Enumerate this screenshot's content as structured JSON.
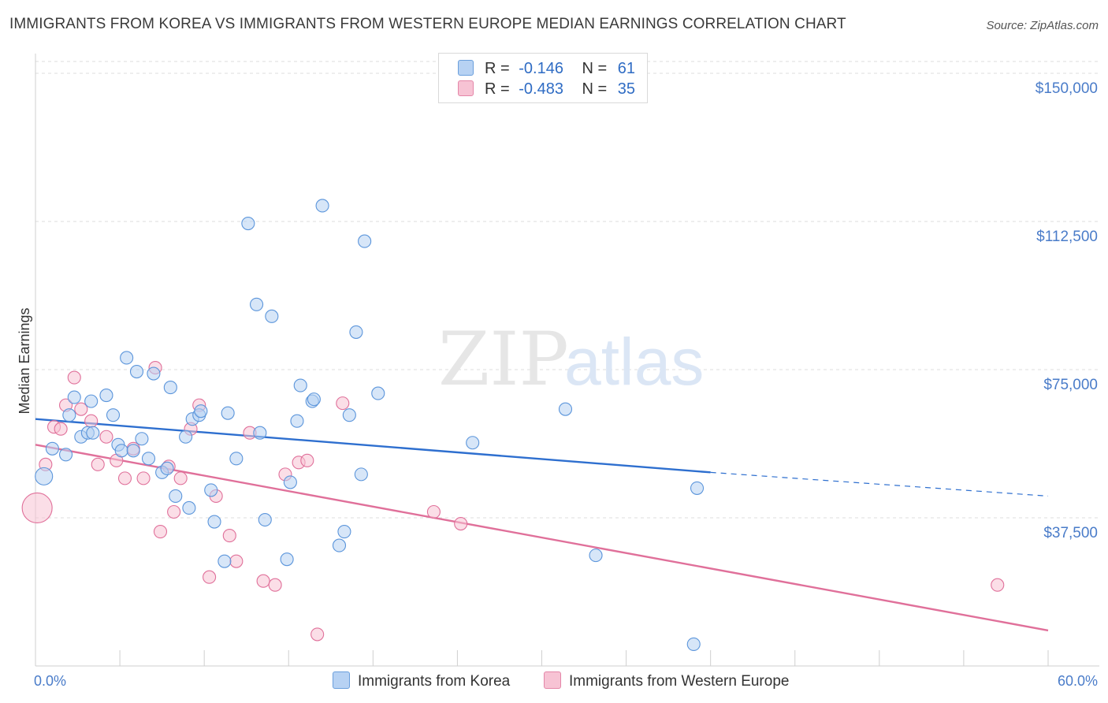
{
  "title": "IMMIGRANTS FROM KOREA VS IMMIGRANTS FROM WESTERN EUROPE MEDIAN EARNINGS CORRELATION CHART",
  "source": "Source: ZipAtlas.com",
  "watermark": {
    "zip": "ZIP",
    "atlas": "atlas"
  },
  "legend": {
    "r_label": "R =",
    "n_label": "N =",
    "rows": [
      {
        "r": "-0.146",
        "n": "61",
        "color": "#a9c9f0",
        "edge": "#6a9fdc"
      },
      {
        "r": "-0.483",
        "n": "35",
        "color": "#f6bcd0",
        "edge": "#e486a8"
      }
    ]
  },
  "colors": {
    "korea": "#5b95db",
    "korea_fill": "#b7d2f3",
    "weu": "#e0709a",
    "weu_fill": "#f7c3d4",
    "grid": "#dcdcdc",
    "axis_text": "#4a7cc9"
  },
  "chart_data": {
    "type": "scatter",
    "title": "IMMIGRANTS FROM KOREA VS IMMIGRANTS FROM WESTERN EUROPE MEDIAN EARNINGS CORRELATION CHART",
    "xlabel": "",
    "ylabel": "Median Earnings",
    "xlim": [
      0,
      60
    ],
    "ylim": [
      0,
      153000
    ],
    "x_ticks_labels": [
      "0.0%",
      "60.0%"
    ],
    "y_ticks": [
      37500,
      75000,
      112500,
      150000
    ],
    "y_tick_labels": [
      "$37,500",
      "$75,000",
      "$112,500",
      "$150,000"
    ],
    "grid": true,
    "legend_position": "top-center",
    "series": [
      {
        "name": "Immigrants from Korea",
        "color": "#5b95db",
        "r": -0.146,
        "n": 61,
        "trend": {
          "x0": 0,
          "y0": 62500,
          "x1": 40,
          "y1": 49000,
          "dash_to_x": 60,
          "dash_to_y": 43000
        },
        "points": [
          [
            0.5,
            48000,
            2
          ],
          [
            1.0,
            55000,
            1
          ],
          [
            1.8,
            53500,
            1
          ],
          [
            2.0,
            63500,
            1
          ],
          [
            2.3,
            68000,
            1
          ],
          [
            2.7,
            58000,
            1
          ],
          [
            3.1,
            59000,
            1
          ],
          [
            3.3,
            67000,
            1
          ],
          [
            3.4,
            59000,
            1
          ],
          [
            4.2,
            68500,
            1
          ],
          [
            4.6,
            63500,
            1
          ],
          [
            4.9,
            56000,
            1
          ],
          [
            5.1,
            54500,
            1
          ],
          [
            5.4,
            78000,
            1
          ],
          [
            5.8,
            54500,
            1
          ],
          [
            6.0,
            74500,
            1
          ],
          [
            6.3,
            57500,
            1
          ],
          [
            6.7,
            52500,
            1
          ],
          [
            7.0,
            74000,
            1
          ],
          [
            7.5,
            49000,
            1
          ],
          [
            7.8,
            50000,
            1
          ],
          [
            8.0,
            70500,
            1
          ],
          [
            8.3,
            43000,
            1
          ],
          [
            8.9,
            58000,
            1
          ],
          [
            9.1,
            40000,
            1
          ],
          [
            9.3,
            62500,
            1
          ],
          [
            9.7,
            63500,
            1
          ],
          [
            9.8,
            64500,
            1
          ],
          [
            10.4,
            44500,
            1
          ],
          [
            10.6,
            36500,
            1
          ],
          [
            11.2,
            26500,
            1
          ],
          [
            11.4,
            64000,
            1
          ],
          [
            11.9,
            52500,
            1
          ],
          [
            12.6,
            112000,
            1
          ],
          [
            13.1,
            91500,
            1
          ],
          [
            13.3,
            59000,
            1
          ],
          [
            13.6,
            37000,
            1
          ],
          [
            14.0,
            88500,
            1
          ],
          [
            14.9,
            27000,
            1
          ],
          [
            15.1,
            46500,
            1
          ],
          [
            15.5,
            62000,
            1
          ],
          [
            15.7,
            71000,
            1
          ],
          [
            16.4,
            67000,
            1
          ],
          [
            16.5,
            67500,
            1
          ],
          [
            17.0,
            116500,
            1
          ],
          [
            18.0,
            30500,
            1
          ],
          [
            18.3,
            34000,
            1
          ],
          [
            18.6,
            63500,
            1
          ],
          [
            19.0,
            84500,
            1
          ],
          [
            19.3,
            48500,
            1
          ],
          [
            19.5,
            107500,
            1
          ],
          [
            20.3,
            69000,
            1
          ],
          [
            25.9,
            56500,
            1
          ],
          [
            31.4,
            65000,
            1
          ],
          [
            33.2,
            28000,
            1
          ],
          [
            39.0,
            5500,
            1
          ],
          [
            39.2,
            45000,
            1
          ]
        ]
      },
      {
        "name": "Immigrants from Western Europe",
        "color": "#e0709a",
        "r": -0.483,
        "n": 35,
        "trend": {
          "x0": 0,
          "y0": 56000,
          "x1": 60,
          "y1": 9000
        },
        "points": [
          [
            0.1,
            40000,
            3
          ],
          [
            0.6,
            51000,
            1
          ],
          [
            1.1,
            60500,
            1
          ],
          [
            1.5,
            60000,
            1
          ],
          [
            1.8,
            66000,
            1
          ],
          [
            2.3,
            73000,
            1
          ],
          [
            2.7,
            65000,
            1
          ],
          [
            3.3,
            62000,
            1
          ],
          [
            3.7,
            51000,
            1
          ],
          [
            4.2,
            58000,
            1
          ],
          [
            4.8,
            52000,
            1
          ],
          [
            5.3,
            47500,
            1
          ],
          [
            5.8,
            55000,
            1
          ],
          [
            6.4,
            47500,
            1
          ],
          [
            7.1,
            75500,
            1
          ],
          [
            7.4,
            34000,
            1
          ],
          [
            7.9,
            50500,
            1
          ],
          [
            8.2,
            39000,
            1
          ],
          [
            8.6,
            47500,
            1
          ],
          [
            9.2,
            60000,
            1
          ],
          [
            9.7,
            66000,
            1
          ],
          [
            10.3,
            22500,
            1
          ],
          [
            10.7,
            43000,
            1
          ],
          [
            11.5,
            33000,
            1
          ],
          [
            11.9,
            26500,
            1
          ],
          [
            12.7,
            59000,
            1
          ],
          [
            13.5,
            21500,
            1
          ],
          [
            14.2,
            20500,
            1
          ],
          [
            14.8,
            48500,
            1
          ],
          [
            15.6,
            51500,
            1
          ],
          [
            16.1,
            52000,
            1
          ],
          [
            16.7,
            8000,
            1
          ],
          [
            18.2,
            66500,
            1
          ],
          [
            23.6,
            39000,
            1
          ],
          [
            25.2,
            36000,
            1
          ],
          [
            57.0,
            20500,
            1
          ]
        ]
      }
    ]
  }
}
